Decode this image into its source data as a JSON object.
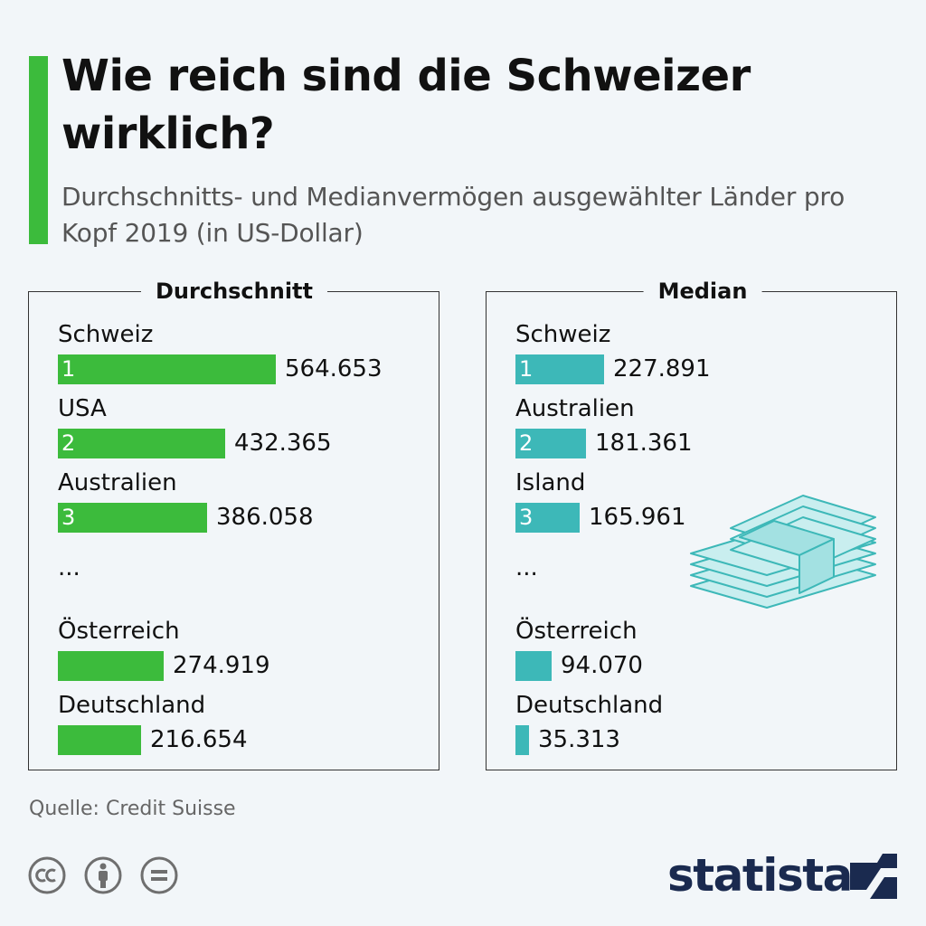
{
  "header": {
    "title": "Wie reich sind die Schweizer wirklich?",
    "subtitle": "Durchschnitts- und Medianvermögen ausgewählter Länder pro Kopf 2019 (in US-Dollar)"
  },
  "colors": {
    "accent": "#3cbb3c",
    "average_bar": "#3cbb3c",
    "median_bar": "#3db8b8",
    "brand": "#1a2a4f"
  },
  "chart_data": [
    {
      "type": "bar",
      "title": "Durchschnitt",
      "categories": [
        "Schweiz",
        "USA",
        "Australien",
        "Österreich",
        "Deutschland"
      ],
      "ranks": [
        "1",
        "2",
        "3",
        "",
        ""
      ],
      "values": [
        564653,
        432365,
        386058,
        274919,
        216654
      ],
      "value_labels": [
        "564.653",
        "432.365",
        "386.058",
        "274.919",
        "216.654"
      ],
      "ellipsis": "..."
    },
    {
      "type": "bar",
      "title": "Median",
      "categories": [
        "Schweiz",
        "Australien",
        "Island",
        "Österreich",
        "Deutschland"
      ],
      "ranks": [
        "1",
        "2",
        "3",
        "",
        ""
      ],
      "values": [
        227891,
        181361,
        165961,
        94070,
        35313
      ],
      "value_labels": [
        "227.891",
        "181.361",
        "165.961",
        "94.070",
        "35.313"
      ],
      "ellipsis": "..."
    }
  ],
  "footer": {
    "source": "Quelle: Credit Suisse",
    "license_icons": [
      "cc-icon",
      "by-icon",
      "nd-icon"
    ],
    "logo_text": "statista"
  }
}
